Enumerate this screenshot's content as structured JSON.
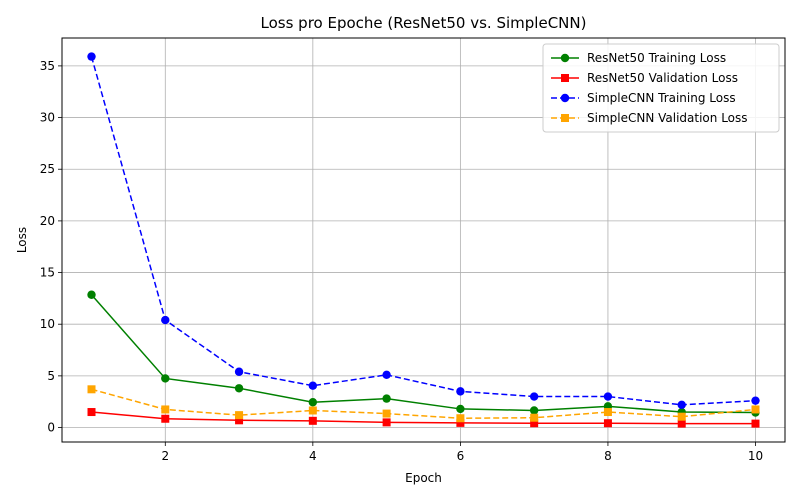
{
  "chart_data": {
    "type": "line",
    "title": "Loss pro Epoche (ResNet50 vs. SimpleCNN)",
    "xlabel": "Epoch",
    "ylabel": "Loss",
    "x": [
      1,
      2,
      3,
      4,
      5,
      6,
      7,
      8,
      9,
      10
    ],
    "xlim": [
      0.6,
      10.4
    ],
    "ylim": [
      -1.4,
      37.7
    ],
    "xticks": [
      2,
      4,
      6,
      8,
      10
    ],
    "yticks": [
      0,
      5,
      10,
      15,
      20,
      25,
      30,
      35
    ],
    "grid": true,
    "legend_position": "top-right",
    "series": [
      {
        "name": "ResNet50 Training Loss",
        "color": "#008000",
        "line_style": "solid",
        "marker": "circle",
        "values": [
          12.85,
          4.75,
          3.8,
          2.45,
          2.8,
          1.8,
          1.65,
          2.05,
          1.5,
          1.45
        ]
      },
      {
        "name": "ResNet50 Validation Loss",
        "color": "#ff0000",
        "line_style": "solid",
        "marker": "square",
        "values": [
          1.5,
          0.85,
          0.7,
          0.65,
          0.5,
          0.45,
          0.42,
          0.42,
          0.38,
          0.38
        ]
      },
      {
        "name": "SimpleCNN Training Loss",
        "color": "#0000ff",
        "line_style": "dashed",
        "marker": "circle",
        "values": [
          35.9,
          10.4,
          5.4,
          4.05,
          5.1,
          3.5,
          3.0,
          3.0,
          2.2,
          2.6
        ]
      },
      {
        "name": "SimpleCNN Validation Loss",
        "color": "#ffa500",
        "line_style": "dashed",
        "marker": "square",
        "values": [
          3.7,
          1.75,
          1.2,
          1.65,
          1.35,
          0.9,
          0.95,
          1.5,
          1.05,
          1.75
        ]
      }
    ]
  }
}
